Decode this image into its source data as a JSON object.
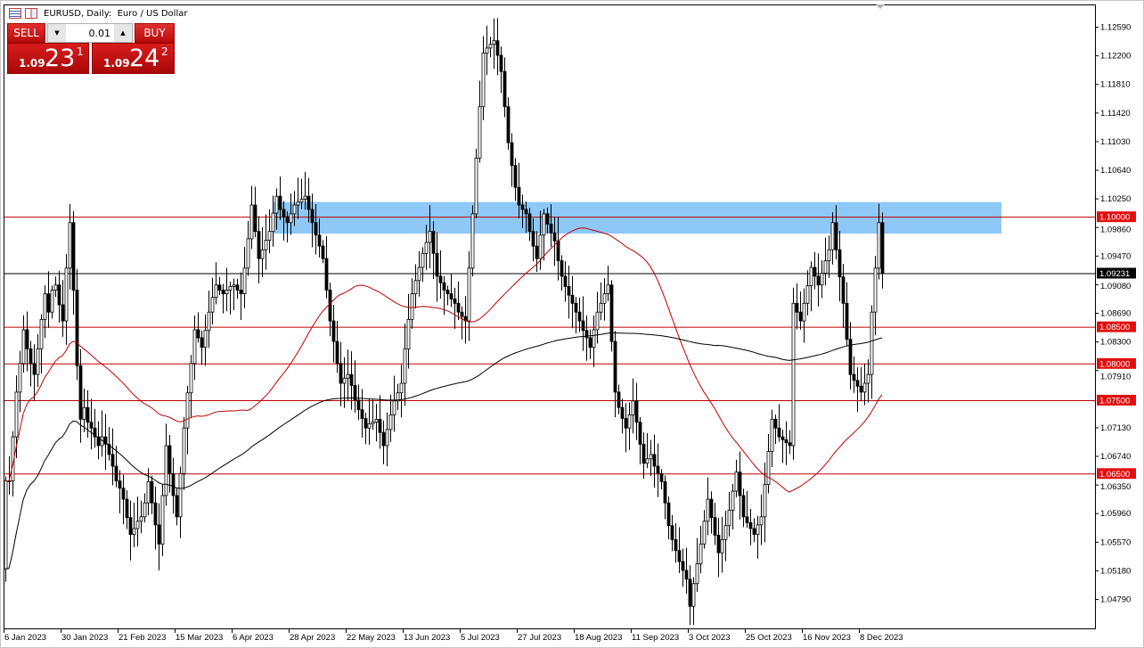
{
  "window": {
    "title": "EURUSD, Daily:  Euro / US Dollar",
    "icons": [
      "menu-icon",
      "symbol-book-icon"
    ]
  },
  "trade_panel": {
    "sell_label": "SELL",
    "buy_label": "BUY",
    "lot_value": "0.01",
    "decrease_icon": "▼",
    "increase_icon": "▲",
    "sell_price": {
      "prefix": "1.09",
      "big": "23",
      "sup": "1"
    },
    "buy_price": {
      "prefix": "1.09",
      "big": "24",
      "sup": "2"
    }
  },
  "colors": {
    "bullish_body": "#ffffff",
    "bearish_body": "#000000",
    "level_line": "#c00000",
    "level_label_bg": "#e01010",
    "bid_line": "#000000",
    "zone": "#8ec8f6",
    "ma_fast": "#c00000",
    "ma_slow": "#000000"
  },
  "chart_data": {
    "type": "candlestick",
    "symbol": "EURUSD",
    "timeframe": "Daily",
    "first_date": "2023-01-06",
    "ylim": [
      1.044,
      1.129
    ],
    "y_ticks": [
      "1.12590",
      "1.12200",
      "1.11810",
      "1.11420",
      "1.11030",
      "1.10640",
      "1.10250",
      "1.09860",
      "1.09470",
      "1.09080",
      "1.08690",
      "1.08300",
      "1.07910",
      "1.07130",
      "1.06740",
      "1.06350",
      "1.05960",
      "1.05570",
      "1.05180",
      "1.04790"
    ],
    "x_ticks": [
      "6 Jan 2023",
      "30 Jan 2023",
      "21 Feb 2023",
      "15 Mar 2023",
      "6 Apr 2023",
      "28 Apr 2023",
      "22 May 2023",
      "13 Jun 2023",
      "5 Jul 2023",
      "27 Jul 2023",
      "18 Aug 2023",
      "11 Sep 2023",
      "3 Oct 2023",
      "25 Oct 2023",
      "16 Nov 2023",
      "8 Dec 2023"
    ],
    "closes": [
      1.064,
      1.064,
      1.07,
      1.0761,
      1.08,
      1.0846,
      1.082,
      1.08,
      1.0785,
      1.082,
      1.086,
      1.0895,
      1.087,
      1.09,
      1.0907,
      1.088,
      1.0858,
      1.093,
      1.0992,
      1.09,
      1.0797,
      1.0724,
      1.074,
      1.072,
      1.0712,
      1.07,
      1.0688,
      1.07,
      1.069,
      1.0676,
      1.066,
      1.064,
      1.063,
      1.0615,
      1.059,
      1.0567,
      1.0575,
      1.0585,
      1.0591,
      1.061,
      1.0639,
      1.061,
      1.058,
      1.0554,
      1.062,
      1.0688,
      1.065,
      1.062,
      1.0591,
      1.065,
      1.0712,
      1.076,
      1.08,
      1.0846,
      1.0835,
      1.0822,
      1.0845,
      1.087,
      1.089,
      1.0907,
      1.09,
      1.0895,
      1.09,
      1.0905,
      1.0907,
      1.09,
      1.0895,
      1.093,
      1.097,
      1.1016,
      1.098,
      1.0943,
      1.0955,
      1.0968,
      1.098,
      1.1005,
      1.1028,
      1.101,
      1.1,
      1.0992,
      1.1004,
      1.1016,
      1.102,
      1.1024,
      1.1028,
      1.101,
      1.0992,
      1.0975,
      1.096,
      1.0943,
      1.09,
      1.0858,
      1.083,
      1.08,
      1.0773,
      1.078,
      1.0785,
      1.077,
      1.075,
      1.0737,
      1.0725,
      1.0712,
      1.0718,
      1.072,
      1.0724,
      1.0706,
      1.0688,
      1.071,
      1.073,
      1.0749,
      1.076,
      1.0773,
      1.082,
      1.086,
      1.0895,
      1.0913,
      1.0931,
      1.095,
      1.0965,
      1.098,
      1.095,
      1.0919,
      1.091,
      1.09,
      1.0895,
      1.0888,
      1.0882,
      1.087,
      1.0864,
      1.0858,
      1.093,
      1.1004,
      1.108,
      1.115,
      1.1223,
      1.123,
      1.1235,
      1.124,
      1.122,
      1.1198,
      1.115,
      1.1101,
      1.107,
      1.104,
      1.1016,
      1.101,
      1.1004,
      1.098,
      1.096,
      1.0943,
      1.0975,
      1.1004,
      1.099,
      1.0978,
      1.0967,
      1.094,
      1.0919,
      1.0905,
      1.0893,
      1.0882,
      1.087,
      1.0858,
      1.0845,
      1.0835,
      1.0822,
      1.0846,
      1.087,
      1.0882,
      1.0895,
      1.0907,
      1.083,
      1.0761,
      1.074,
      1.0725,
      1.0712,
      1.073,
      1.0749,
      1.072,
      1.069,
      1.0664,
      1.067,
      1.0676,
      1.066,
      1.065,
      1.0639,
      1.061,
      1.0579,
      1.056,
      1.0545,
      1.053,
      1.0518,
      1.0506,
      1.0469,
      1.05,
      1.0527,
      1.0554,
      1.0585,
      1.0615,
      1.059,
      1.0566,
      1.0542,
      1.056,
      1.0579,
      1.06,
      1.0626,
      1.0652,
      1.062,
      1.0591,
      1.0583,
      1.0575,
      1.0567,
      1.058,
      1.0591,
      1.0635,
      1.068,
      1.0724,
      1.0712,
      1.07,
      1.0696,
      1.0692,
      1.0688,
      1.0882,
      1.087,
      1.0858,
      1.0882,
      1.0906,
      1.0931,
      1.0919,
      1.0907,
      1.0923,
      1.094,
      1.0955,
      1.0992,
      1.0955,
      1.0918,
      1.0882,
      1.0833,
      1.0785,
      1.0777,
      1.0769,
      1.0761,
      1.0773,
      1.0785,
      1.087,
      1.093,
      1.0992,
      1.0923
    ],
    "first_open": 1.052,
    "moving_averages": [
      {
        "type": "SMA",
        "period": 50,
        "color": "#c00000"
      },
      {
        "type": "SMA",
        "period": 200,
        "color": "#000000"
      }
    ],
    "horizontal_levels": [
      {
        "price": 1.1,
        "label": "1.10000"
      },
      {
        "price": 1.085,
        "label": "1.08500"
      },
      {
        "price": 1.08,
        "label": "1.08000"
      },
      {
        "price": 1.075,
        "label": "1.07500"
      },
      {
        "price": 1.065,
        "label": "1.06500"
      }
    ],
    "bid_line": {
      "price": 1.09231,
      "label": "1.09231"
    },
    "zone": {
      "from_date": "2023-04-21",
      "price_low": 1.0977,
      "price_high": 1.102
    },
    "grid": false
  }
}
